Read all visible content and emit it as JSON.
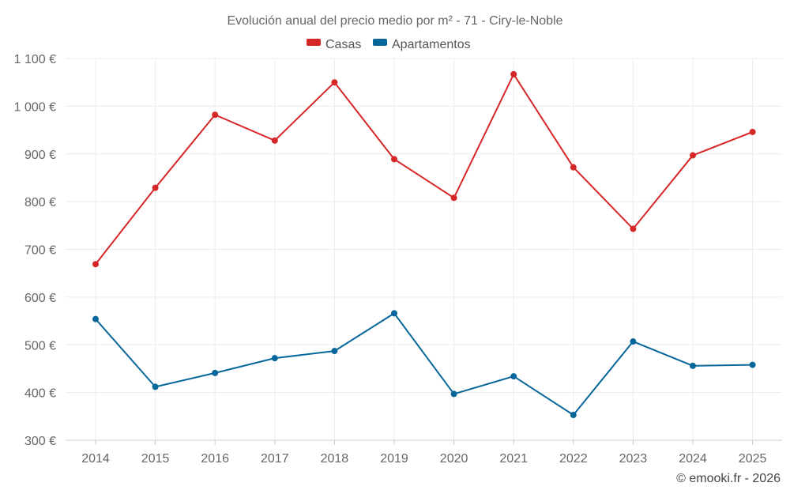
{
  "chart_data": {
    "type": "line",
    "title": "Evolución anual del precio medio por m² - 71 - Ciry-le-Noble",
    "categories": [
      "2014",
      "2015",
      "2016",
      "2017",
      "2018",
      "2019",
      "2020",
      "2021",
      "2022",
      "2023",
      "2024",
      "2025"
    ],
    "series": [
      {
        "name": "Casas",
        "color": "#d62728",
        "values": [
          669,
          829,
          982,
          928,
          1050,
          889,
          808,
          1067,
          872,
          743,
          897,
          946
        ]
      },
      {
        "name": "Apartamentos",
        "color": "#08679a",
        "values": [
          554,
          412,
          441,
          472,
          487,
          566,
          397,
          434,
          353,
          507,
          456,
          458
        ]
      }
    ],
    "ylim": [
      300,
      1100
    ],
    "yticks": [
      300,
      400,
      500,
      600,
      700,
      800,
      900,
      1000,
      1100
    ],
    "ytick_labels": [
      "300 €",
      "400 €",
      "500 €",
      "600 €",
      "700 €",
      "800 €",
      "900 €",
      "1 000 €",
      "1 100 €"
    ],
    "grid": true,
    "legend_position": "top-center",
    "credit": "© emooki.fr - 2026"
  }
}
